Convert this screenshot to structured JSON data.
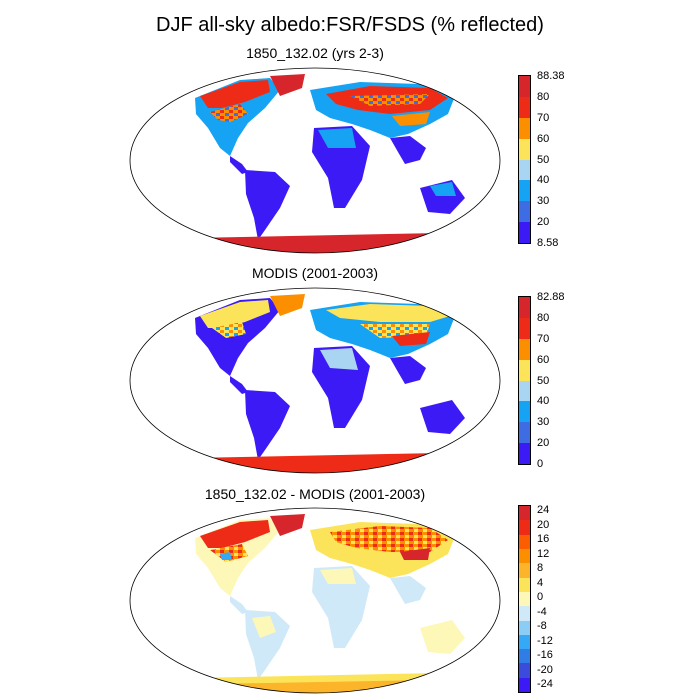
{
  "title": "DJF all-sky albedo:FSR/FSDS (% reflected)",
  "panels": [
    {
      "title": "1850_132.02 (yrs 2-3)",
      "colorbar": {
        "labels": [
          "88.38",
          "80",
          "70",
          "60",
          "50",
          "40",
          "30",
          "20",
          "8.58"
        ],
        "colors": [
          "#d7262b",
          "#ee2b17",
          "#fc8f00",
          "#fce45a",
          "#a9d4f2",
          "#16a3f3",
          "#3e6ce3",
          "#3b1af5"
        ]
      }
    },
    {
      "title": "MODIS (2001-2003)",
      "colorbar": {
        "labels": [
          "82.88",
          "80",
          "70",
          "60",
          "50",
          "40",
          "30",
          "20",
          "0"
        ],
        "colors": [
          "#d7262b",
          "#ee2b17",
          "#fc8f00",
          "#fce45a",
          "#a9d4f2",
          "#16a3f3",
          "#3e6ce3",
          "#3b1af5"
        ]
      }
    },
    {
      "title": "1850_132.02 - MODIS (2001-2003)",
      "colorbar": {
        "labels": [
          "24",
          "20",
          "16",
          "12",
          "8",
          "4",
          "0",
          "-4",
          "-8",
          "-12",
          "-16",
          "-20",
          "-24"
        ],
        "colors": [
          "#d7262b",
          "#ee2b17",
          "#fc5d00",
          "#fc8f00",
          "#fcb42a",
          "#fce45a",
          "#fdf8b8",
          "#cfe9f8",
          "#8bcdf4",
          "#35a9f5",
          "#2f7de5",
          "#3b4bdc",
          "#3b1af5"
        ]
      }
    }
  ]
}
